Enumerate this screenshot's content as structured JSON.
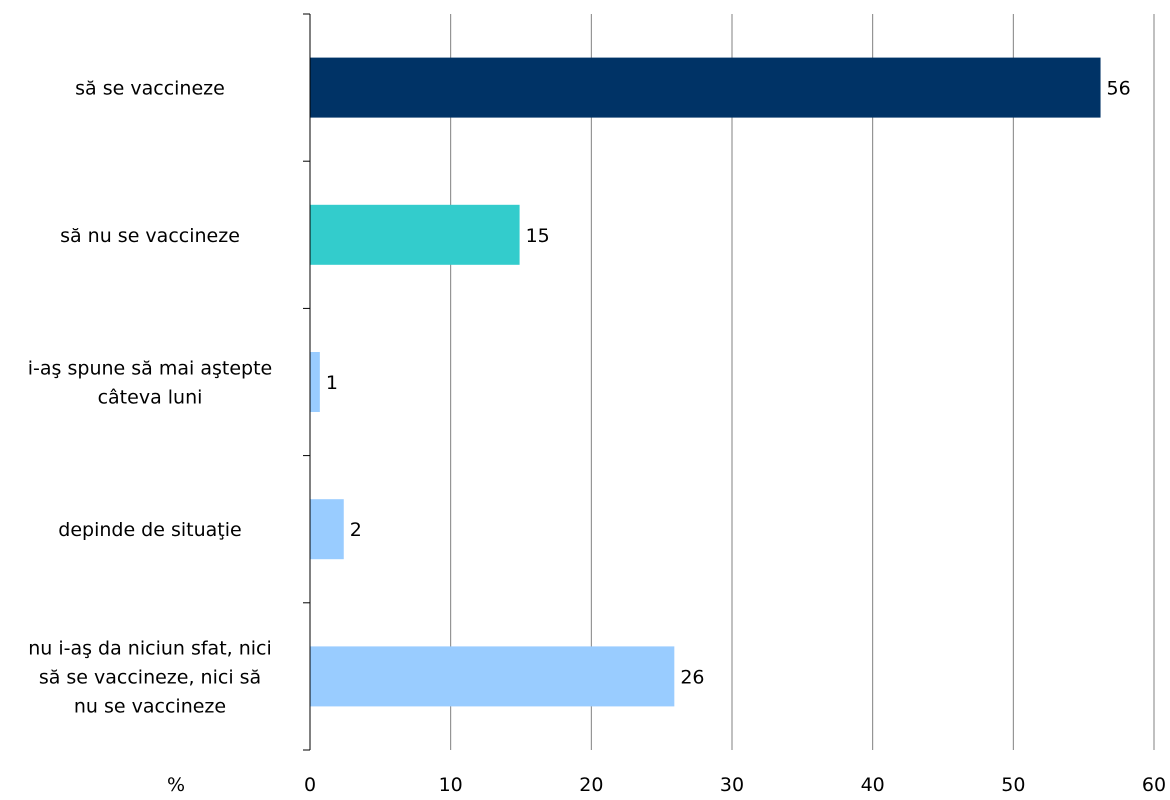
{
  "chart_data": {
    "type": "bar",
    "orientation": "horizontal",
    "categories": [
      [
        "să se vaccineze"
      ],
      [
        "să nu se vaccineze"
      ],
      [
        "i-aş spune să mai aştepte",
        "câteva luni"
      ],
      [
        "depinde de situaţie"
      ],
      [
        "nu i-aş da niciun sfat, nici",
        "să se vaccineze, nici să",
        "nu se vaccineze"
      ]
    ],
    "values": [
      56.2,
      14.9,
      0.7,
      2.4,
      25.9
    ],
    "value_labels": [
      "56",
      "15",
      "1",
      "2",
      "26"
    ],
    "bar_colors": [
      "#003366",
      "#33cccc",
      "#99ccff",
      "#99ccff",
      "#99ccff"
    ],
    "xlim": [
      0,
      60
    ],
    "xticks": [
      0,
      10,
      20,
      30,
      40,
      50,
      60
    ],
    "x_unit_label": "%",
    "grid": "vertical",
    "gridline_color": "#808080",
    "axis_color": "#000000"
  }
}
